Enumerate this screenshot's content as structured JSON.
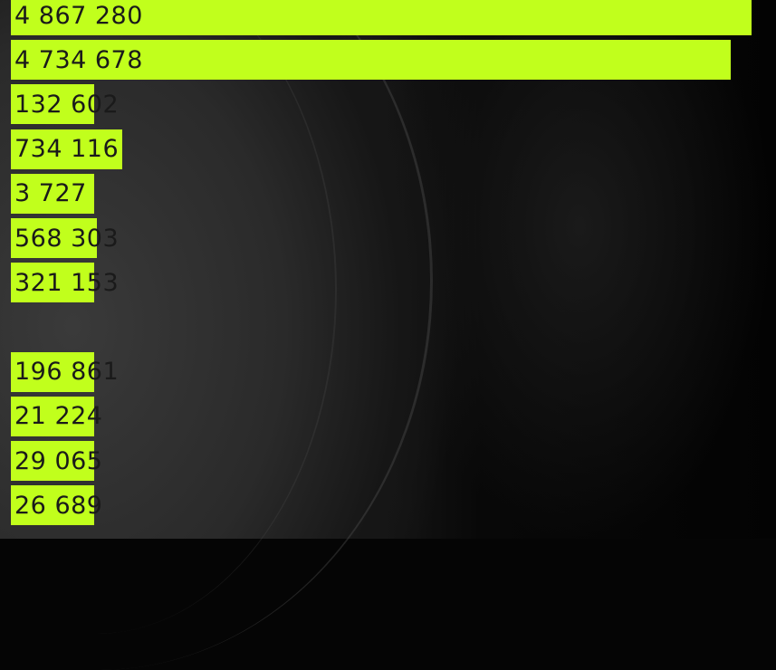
{
  "colors": {
    "bar": "#c1ff1c",
    "label": "#1a1a1a",
    "background": "#050505"
  },
  "chart_data": {
    "type": "bar",
    "orientation": "horizontal",
    "values": [
      4867280,
      4734678,
      132602,
      734116,
      3727,
      568303,
      321153,
      null,
      196861,
      21224,
      29065,
      26689
    ],
    "data_labels": [
      "4 867 280",
      "4 734 678",
      "132 602",
      "734 116",
      "3 727",
      "568 303",
      "321 153",
      "",
      "196 861",
      "21 224",
      "29 065",
      "26 689"
    ],
    "title": "",
    "xlabel": "",
    "ylabel": "",
    "grid": false,
    "legend": "none"
  }
}
